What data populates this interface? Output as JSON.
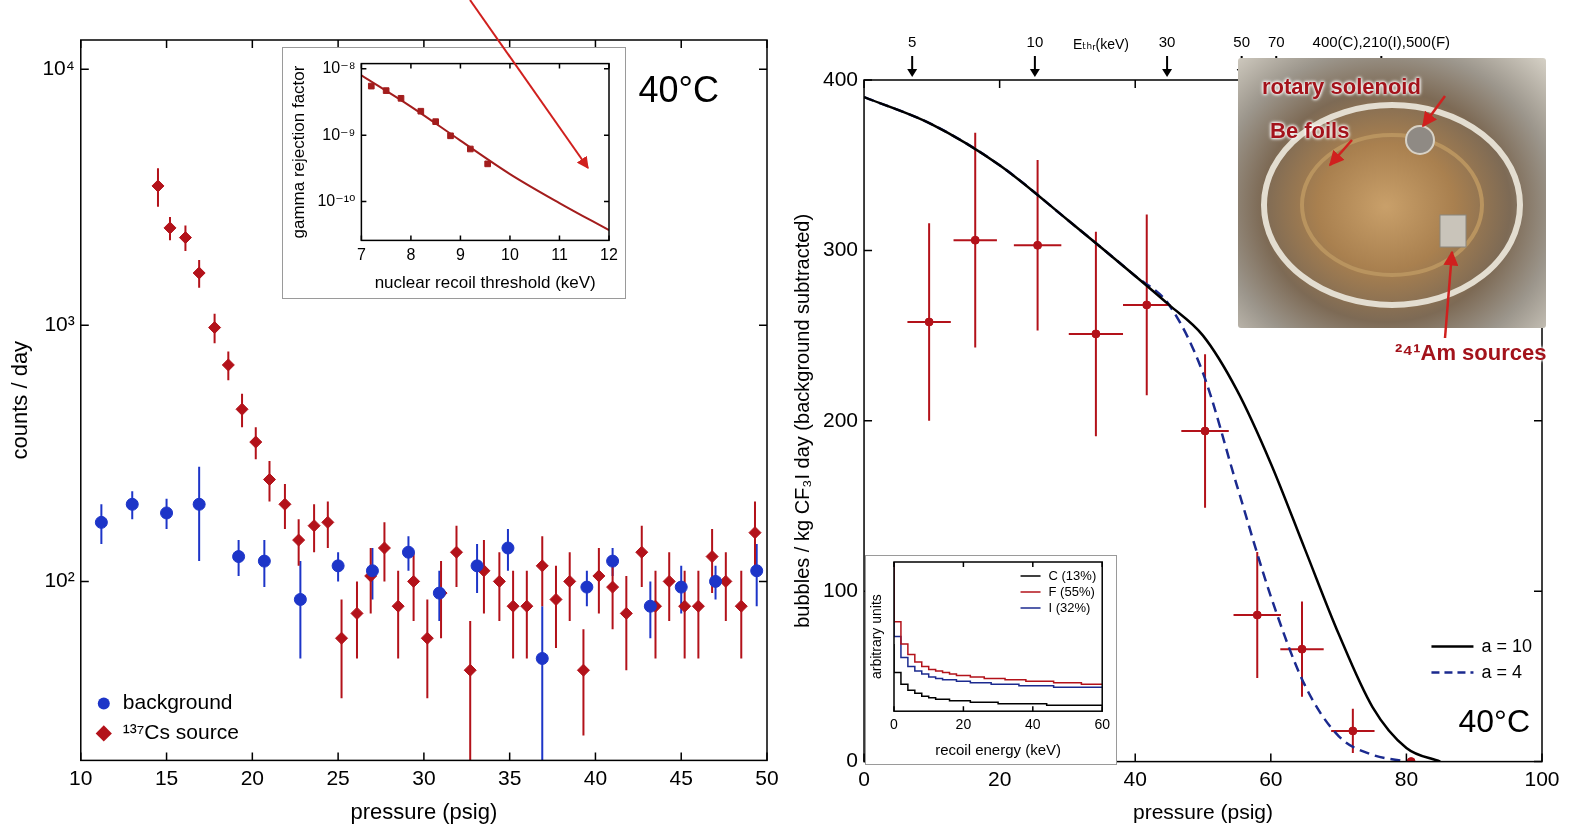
{
  "chart_data": [
    {
      "type": "scatter",
      "x_label": "pressure (psig)",
      "y_label": "counts / day",
      "log": "y",
      "grid": false,
      "legend": "lower left",
      "xlim": [
        10,
        50
      ],
      "xticks": [
        10,
        15,
        20,
        25,
        30,
        35,
        40,
        45,
        50
      ],
      "ylim": [
        20,
        13000
      ],
      "yticks": [
        {
          "value": 100,
          "label": "10²"
        },
        {
          "value": 1000,
          "label": "10³"
        },
        {
          "value": 10000,
          "label": "10⁴"
        }
      ],
      "annotations": [
        "40°C"
      ],
      "series": [
        {
          "name": "background",
          "color": "#1d35c8",
          "marker": "circle",
          "x": [
            11.2,
            13.0,
            15.0,
            16.9,
            19.2,
            20.7,
            22.8,
            25.0,
            27.0,
            29.1,
            30.9,
            33.1,
            34.9,
            36.9,
            39.5,
            41.0,
            43.2,
            45.0,
            47.0,
            49.4
          ],
          "values": [
            170,
            200,
            185,
            200,
            125,
            120,
            85,
            115,
            110,
            130,
            90,
            115,
            135,
            50,
            95,
            120,
            80,
            95,
            100,
            110
          ],
          "yerr": [
            30,
            25,
            25,
            80,
            20,
            25,
            35,
            15,
            25,
            20,
            20,
            25,
            25,
            30,
            15,
            15,
            20,
            20,
            15,
            30
          ]
        },
        {
          "name": "¹³⁷Cs source",
          "color": "#b3121a",
          "marker": "diamond",
          "x": [
            14.5,
            15.2,
            16.1,
            16.9,
            17.8,
            18.6,
            19.4,
            20.2,
            21.0,
            21.9,
            22.7,
            23.6,
            24.4,
            25.2,
            26.1,
            26.9,
            27.7,
            28.5,
            29.4,
            30.2,
            31.0,
            31.9,
            32.7,
            33.5,
            34.4,
            35.2,
            36.0,
            36.9,
            37.7,
            38.5,
            39.3,
            40.2,
            41.0,
            41.8,
            42.7,
            43.5,
            44.3,
            45.2,
            46.0,
            46.8,
            47.6,
            48.5,
            49.3
          ],
          "values": [
            3500,
            2400,
            2200,
            1600,
            980,
            700,
            470,
            350,
            250,
            200,
            145,
            165,
            170,
            60,
            75,
            105,
            135,
            80,
            100,
            60,
            90,
            130,
            45,
            110,
            100,
            80,
            80,
            115,
            85,
            100,
            45,
            105,
            95,
            75,
            130,
            80,
            100,
            80,
            80,
            125,
            100,
            80,
            155
          ],
          "yerr": [
            600,
            250,
            250,
            200,
            130,
            90,
            70,
            50,
            45,
            40,
            30,
            35,
            35,
            25,
            25,
            30,
            35,
            30,
            30,
            25,
            30,
            35,
            25,
            35,
            30,
            30,
            30,
            35,
            30,
            30,
            20,
            30,
            30,
            30,
            35,
            30,
            30,
            30,
            30,
            35,
            30,
            30,
            50
          ]
        }
      ]
    },
    {
      "type": "scatter",
      "x_label": "nuclear recoil threshold (keV)",
      "y_label": "gamma rejection factor",
      "log": "y",
      "grid": false,
      "xlim": [
        7,
        12
      ],
      "xticks": [
        7,
        8,
        9,
        10,
        11,
        12
      ],
      "ylim": [
        2.6e-11,
        1.2e-08
      ],
      "yticks": [
        {
          "value": 1e-08,
          "label": "10⁻⁸"
        },
        {
          "value": 1e-09,
          "label": "10⁻⁹"
        },
        {
          "value": 1e-10,
          "label": "10⁻¹⁰"
        }
      ],
      "series": [
        {
          "color": "#a31d1d",
          "marker": "square",
          "x": [
            7.2,
            7.5,
            7.8,
            8.2,
            8.5,
            8.8,
            9.2,
            9.55
          ],
          "values": [
            5.5e-09,
            4.7e-09,
            3.6e-09,
            2.3e-09,
            1.6e-09,
            9.8e-10,
            6.2e-10,
            3.7e-10
          ]
        },
        {
          "type": "line",
          "color": "#a31d1d",
          "marker": "none",
          "line_style": "solid",
          "x": [
            7,
            8,
            9,
            10,
            11,
            12
          ],
          "values": [
            8e-09,
            2.7e-09,
            8.3e-10,
            2.6e-10,
            9.5e-11,
            3.7e-11
          ]
        }
      ]
    },
    {
      "type": "scatter",
      "x_label": "pressure (psig)",
      "y_label": "bubbles / kg CF₃I day (background subtracted)",
      "grid": false,
      "legend": "lower right",
      "xlim": [
        0,
        100
      ],
      "xticks": [
        0,
        20,
        40,
        60,
        80,
        100
      ],
      "ylim": [
        0,
        400
      ],
      "yticks": [
        0,
        100,
        200,
        300,
        400
      ],
      "x2_label": "Eₜₕᵣ(keV)",
      "x2lim": [
        0,
        100
      ],
      "x2ticks": [
        {
          "value": 7.1,
          "label": "5"
        },
        {
          "value": 25.2,
          "label": "10"
        },
        {
          "value": 44.7,
          "label": "30"
        },
        {
          "value": 55.7,
          "label": "50"
        },
        {
          "value": 60.8,
          "label": "70"
        },
        {
          "value": 76.3,
          "label": "400(C),210(I),500(F)"
        }
      ],
      "annotations": [
        "40°C",
        "rotary solenoid",
        "Be foils",
        "²⁴¹Am sources"
      ],
      "series": [
        {
          "color": "#b3121a",
          "marker": "circle",
          "x": [
            9.6,
            16.4,
            25.6,
            34.2,
            41.7,
            50.3,
            58.0,
            64.6,
            72.1,
            80.7
          ],
          "values": [
            258,
            306,
            303,
            251,
            268,
            194,
            86,
            66,
            18,
            0
          ],
          "xerr": [
            3.2,
            3.2,
            3.5,
            4,
            3.5,
            3.5,
            3.5,
            3.2,
            3.2,
            0
          ],
          "yerr": [
            58,
            63,
            50,
            60,
            53,
            45,
            37,
            28,
            13,
            0
          ]
        },
        {
          "name": "a = 10",
          "type": "line",
          "color": "#000000",
          "marker": "none",
          "line_style": "solid",
          "x": [
            0,
            10,
            20,
            30,
            40,
            45,
            50,
            55,
            60,
            65,
            70,
            75,
            80,
            85
          ],
          "values": [
            390,
            374,
            350,
            318,
            285,
            268,
            250,
            218,
            175,
            125,
            75,
            32,
            8,
            0
          ]
        },
        {
          "name": "a = 4",
          "type": "line",
          "color": "#1b2a8f",
          "marker": "none",
          "line_style": "dashed",
          "x": [
            0,
            10,
            20,
            30,
            40,
            45,
            50,
            55,
            60,
            65,
            70,
            75,
            80
          ],
          "values": [
            390,
            374,
            350,
            318,
            285,
            268,
            228,
            162,
            97,
            45,
            15,
            4,
            0
          ]
        }
      ]
    },
    {
      "type": "histogram",
      "x_label": "recoil energy (keV)",
      "y_label": "arbitrary units",
      "grid": false,
      "legend": "upper right",
      "tick_labels": "x",
      "xlim": [
        0,
        60
      ],
      "xticks": [
        0,
        20,
        40,
        60
      ],
      "ylim": [
        0,
        100
      ],
      "bins": [
        0,
        2,
        4,
        6,
        8,
        10,
        12,
        14,
        16,
        18,
        20,
        22,
        24,
        26,
        28,
        30,
        32,
        34,
        36,
        38,
        40,
        42,
        44,
        46,
        48,
        50,
        52,
        54,
        56,
        58,
        60
      ],
      "series": [
        {
          "name": "C (13%)",
          "color": "#000000",
          "values": [
            45,
            26,
            18,
            14,
            12,
            10,
            9,
            8,
            8,
            7,
            7,
            7,
            6,
            6,
            6,
            6,
            5,
            5,
            5,
            5,
            5,
            5,
            5,
            4,
            4,
            4,
            4,
            4,
            4,
            4
          ]
        },
        {
          "name": "F (55%)",
          "color": "#b3121a",
          "values": [
            100,
            60,
            45,
            38,
            33,
            30,
            28,
            27,
            26,
            25,
            24,
            24,
            23,
            23,
            22,
            22,
            22,
            21,
            21,
            21,
            20,
            20,
            20,
            20,
            19,
            19,
            19,
            19,
            18,
            18
          ]
        },
        {
          "name": "I (32%)",
          "color": "#1b2a8f",
          "values": [
            98,
            50,
            36,
            30,
            27,
            25,
            23,
            22,
            21,
            21,
            20,
            20,
            19,
            19,
            19,
            18,
            18,
            18,
            18,
            17,
            17,
            17,
            17,
            17,
            16,
            16,
            16,
            16,
            16,
            16
          ]
        }
      ]
    }
  ]
}
